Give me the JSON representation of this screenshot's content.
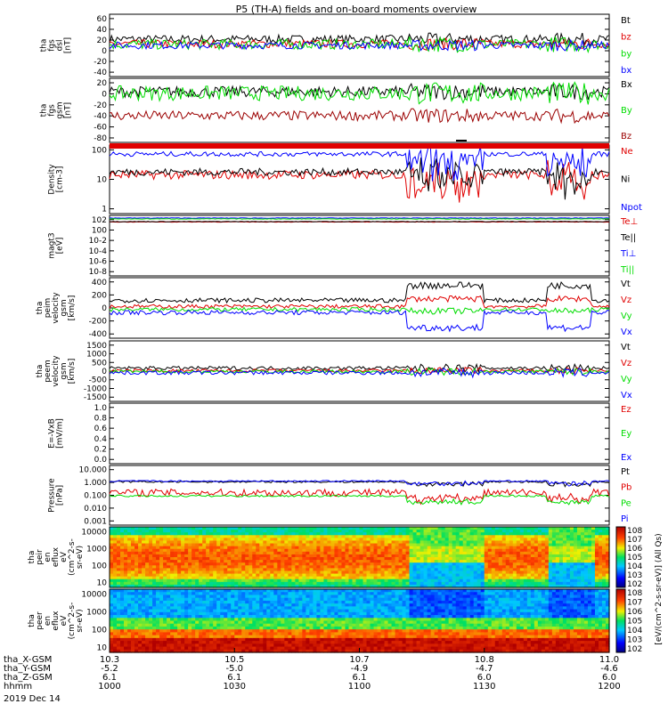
{
  "title": "P5 (TH-A) fields and on-board moments overview",
  "colors": {
    "black": "#000000",
    "red": "#e00000",
    "green": "#00dd00",
    "blue": "#0000ff",
    "darkred": "#9b0000"
  },
  "chart_data": [
    {
      "type": "line",
      "ylabel": [
        "tha",
        "fgs",
        "dsl",
        "[nT]"
      ],
      "ylim": [
        -60,
        60
      ],
      "ytick_labels": [
        "60",
        "40",
        "20",
        "0",
        "-20",
        "-40"
      ],
      "series": [
        {
          "name": "Bt",
          "color": "#000000",
          "level": 12,
          "amp": 8
        },
        {
          "name": "bz",
          "color": "#e00000",
          "level": 3,
          "amp": 8
        },
        {
          "name": "by",
          "color": "#00dd00",
          "level": 2,
          "amp": 10
        },
        {
          "name": "bx",
          "color": "#0000ff",
          "level": 0,
          "amp": 7
        }
      ]
    },
    {
      "type": "line",
      "ylabel": [
        "tha",
        "fgs",
        "gsm",
        "[nT]"
      ],
      "ylim": [
        -90,
        30
      ],
      "ytick_labels": [
        "20",
        "0",
        "-20",
        "-40",
        "-60",
        "-80"
      ],
      "series": [
        {
          "name": "Bx",
          "color": "#000000",
          "level": 5,
          "amp": 10
        },
        {
          "name": "By",
          "color": "#00dd00",
          "level": 2,
          "amp": 14
        },
        {
          "name": "Bz",
          "color": "#9b0000",
          "level": -40,
          "amp": 9
        }
      ]
    },
    {
      "type": "line",
      "ylabel": [
        "Density",
        "[cm-3]"
      ],
      "ylim": [
        1,
        200
      ],
      "scale": "log",
      "ytick_labels": [
        "100",
        "10",
        "1"
      ],
      "series": [
        {
          "name": "Ne",
          "color": "#e00000",
          "level": 20,
          "amp": 0.15
        },
        {
          "name": "Ni",
          "color": "#000000",
          "level": 25,
          "amp": 0.12
        },
        {
          "name": "Npot",
          "color": "#0000ff",
          "level": 100,
          "amp": 0.08
        }
      ]
    },
    {
      "type": "line",
      "ylabel": [
        "magt3",
        "[eV]"
      ],
      "ylim": [
        1e-09,
        1000.0
      ],
      "scale": "log",
      "ytick_labels": [
        "10^2",
        "10^0",
        "10^-2",
        "10^-4",
        "10^-6",
        "10^-8"
      ],
      "series": [
        {
          "name": "Te⊥",
          "color": "#e00000",
          "level": 50,
          "amp": 0.05
        },
        {
          "name": "Te||",
          "color": "#000000",
          "level": 60,
          "amp": 0.05
        },
        {
          "name": "Ti⊥",
          "color": "#0000ff",
          "level": 300,
          "amp": 0.05
        },
        {
          "name": "Ti||",
          "color": "#00dd00",
          "level": 200,
          "amp": 0.05
        }
      ]
    },
    {
      "type": "line",
      "ylabel": [
        "tha",
        "peim",
        "velocity",
        "gsm",
        "[km/s]"
      ],
      "ylim": [
        -400,
        400
      ],
      "ytick_labels": [
        "400",
        "200",
        "0",
        "-200",
        "-400"
      ],
      "series": [
        {
          "name": "Vt",
          "color": "#000000",
          "level": 100,
          "amp": 30
        },
        {
          "name": "Vz",
          "color": "#e00000",
          "level": 20,
          "amp": 25
        },
        {
          "name": "Vy",
          "color": "#00dd00",
          "level": -20,
          "amp": 25
        },
        {
          "name": "Vx",
          "color": "#0000ff",
          "level": -60,
          "amp": 30
        }
      ]
    },
    {
      "type": "line",
      "ylabel": [
        "tha",
        "peem",
        "velocity",
        "gsm",
        "[km/s]"
      ],
      "ylim": [
        -1500,
        1500
      ],
      "ytick_labels": [
        "1500",
        "1000",
        "500",
        "0",
        "-500",
        "-1000",
        "-1500"
      ],
      "series": [
        {
          "name": "Vt",
          "color": "#000000",
          "level": 150,
          "amp": 90
        },
        {
          "name": "Vz",
          "color": "#e00000",
          "level": 20,
          "amp": 80
        },
        {
          "name": "Vy",
          "color": "#00dd00",
          "level": -20,
          "amp": 80
        },
        {
          "name": "Vx",
          "color": "#0000ff",
          "level": -80,
          "amp": 100
        }
      ]
    },
    {
      "type": "line",
      "ylabel": [
        "E=-VxB",
        "[mV/m]"
      ],
      "ylim": [
        0,
        1
      ],
      "ytick_labels": [
        "1.0",
        "0.8",
        "0.6",
        "0.4",
        "0.2",
        "0.0"
      ],
      "series": [
        {
          "name": "Ez",
          "color": "#e00000"
        },
        {
          "name": "Ey",
          "color": "#00dd00"
        },
        {
          "name": "Ex",
          "color": "#0000ff"
        }
      ]
    },
    {
      "type": "line",
      "ylabel": [
        "Pressure",
        "[nPa]"
      ],
      "ylim": [
        0.001,
        10
      ],
      "scale": "log",
      "ytick_labels": [
        "10.000",
        "1.000",
        "0.100",
        "0.010",
        "0.001"
      ],
      "series": [
        {
          "name": "Pt",
          "color": "#000000",
          "level": 0.8,
          "amp": 0.06
        },
        {
          "name": "Pb",
          "color": "#e00000",
          "level": 0.15,
          "amp": 0.25
        },
        {
          "name": "Pe",
          "color": "#00dd00",
          "level": 0.09,
          "amp": 0.06
        },
        {
          "name": "Pi",
          "color": "#0000ff",
          "level": 0.9,
          "amp": 0.05
        }
      ]
    },
    {
      "type": "heatmap",
      "ylabel": [
        "tha",
        "peir",
        "en",
        "eflux",
        "eV",
        "(cm^2-s-",
        "sr-eV)"
      ],
      "ylim": [
        5,
        25000
      ],
      "scale": "log",
      "ytick_labels": [
        "10000",
        "1000",
        "100",
        "10"
      ]
    },
    {
      "type": "heatmap",
      "ylabel": [
        "tha",
        "peer",
        "en",
        "eflux",
        "eV",
        "(cm^2-s-",
        "sr-eV)"
      ],
      "ylim": [
        5,
        25000
      ],
      "scale": "log",
      "ytick_labels": [
        "10000",
        "1000",
        "100",
        "10"
      ]
    }
  ],
  "colorbar": {
    "label": "[eV/(cm^2-s-sr-eV)] (All Qs)",
    "ticks": [
      "10^8",
      "10^7",
      "10^6",
      "10^5",
      "10^4",
      "10^3",
      "10^2"
    ]
  },
  "axis_rows": [
    {
      "label": "tha_X-GSM",
      "values": [
        "10.3",
        "10.5",
        "10.7",
        "10.8",
        "11.0"
      ]
    },
    {
      "label": "tha_Y-GSM",
      "values": [
        "-5.2",
        "-5.0",
        "-4.9",
        "-4.7",
        "-4.6"
      ]
    },
    {
      "label": "tha_Z-GSM",
      "values": [
        "6.1",
        "6.1",
        "6.1",
        "6.0",
        "6.0"
      ]
    },
    {
      "label": "hhmm",
      "values": [
        "1000",
        "1030",
        "1100",
        "1130",
        "1200"
      ]
    }
  ],
  "date": "2019 Dec 14"
}
